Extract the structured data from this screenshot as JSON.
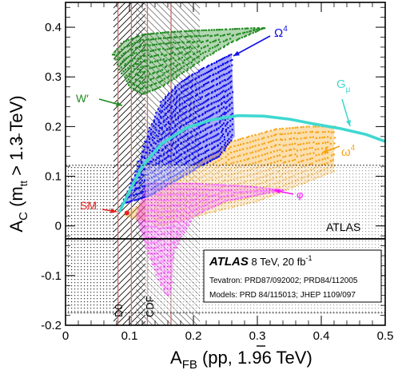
{
  "chart_data": {
    "type": "scatter",
    "xlim": [
      0,
      0.5
    ],
    "ylim": [
      -0.2,
      0.45
    ],
    "xticks": [
      "0",
      "0.1",
      "0.2",
      "0.3",
      "0.4",
      "0.5"
    ],
    "yticks": [
      "-0.2",
      "-0.1",
      "0",
      "0.1",
      "0.2",
      "0.3",
      "0.4"
    ],
    "x_minor_step": 0.02,
    "y_minor_step": 0.02,
    "xlabel": {
      "main": "A",
      "sub": "FB",
      "rest": " (p",
      "pbar": "p",
      "tail": ", 1.96 TeV)"
    },
    "ylabel": {
      "main": "A",
      "sub": "C",
      "pre": " (m",
      "sub2": "tt",
      "post": " > 1.3 TeV)"
    },
    "colors": {
      "W": "#228b22",
      "Omega4": "#1010e8",
      "Gmu": "#40d8d0",
      "omega4": "#f5a418",
      "phi": "#ff10ff",
      "SM": "#e82020",
      "band_line": "#c87878"
    },
    "model_labels": {
      "W": "W′",
      "Omega4": "Ω",
      "Omega4_sup": "4",
      "Gmu": "G",
      "Gmu_sub": "μ",
      "omega4": "ω",
      "omega4_sup": "4",
      "phi": "φ",
      "SM": "SM"
    },
    "atlas_label": "ATLAS",
    "atlas_value": -0.026,
    "atlas_band": [
      -0.175,
      0.122
    ],
    "d0_label": "D0",
    "d0_band": [
      0.075,
      0.125
    ],
    "cdf_label": "CDF",
    "cdf_band": [
      0.11,
      0.21
    ],
    "info_box": {
      "title": "ATLAS",
      "subtitle": " 8 TeV, 20 fb",
      "subtitle_sup": "-1",
      "line1": "Tevatron: PRD87/092002; PRD84/112005",
      "line2": "Models: PRD 84/115013; JHEP 1109/097"
    },
    "series": [
      {
        "name": "W′",
        "key": "W",
        "color": "#228b22",
        "upper_edge": [
          [
            0.075,
            0.345
          ],
          [
            0.09,
            0.37
          ],
          [
            0.12,
            0.385
          ],
          [
            0.16,
            0.39
          ],
          [
            0.2,
            0.393
          ],
          [
            0.24,
            0.395
          ],
          [
            0.29,
            0.398
          ],
          [
            0.31,
            0.398
          ]
        ],
        "lower_edge": [
          [
            0.075,
            0.345
          ],
          [
            0.085,
            0.315
          ],
          [
            0.1,
            0.28
          ],
          [
            0.12,
            0.265
          ],
          [
            0.15,
            0.28
          ],
          [
            0.18,
            0.305
          ],
          [
            0.22,
            0.34
          ],
          [
            0.26,
            0.37
          ],
          [
            0.31,
            0.398
          ]
        ]
      },
      {
        "name": "Ω4",
        "key": "Omega4",
        "color": "#1010e8",
        "upper_edge": [
          [
            0.09,
            0.045
          ],
          [
            0.11,
            0.11
          ],
          [
            0.13,
            0.19
          ],
          [
            0.15,
            0.25
          ],
          [
            0.18,
            0.29
          ],
          [
            0.22,
            0.32
          ],
          [
            0.26,
            0.345
          ]
        ],
        "lower_edge": [
          [
            0.09,
            0.045
          ],
          [
            0.13,
            0.06
          ],
          [
            0.17,
            0.09
          ],
          [
            0.21,
            0.12
          ],
          [
            0.24,
            0.14
          ],
          [
            0.265,
            0.18
          ],
          [
            0.26,
            0.345
          ]
        ]
      },
      {
        "name": "Gμ",
        "key": "Gmu",
        "color": "#40d8d0",
        "x": [
          0.085,
          0.1,
          0.12,
          0.15,
          0.19,
          0.23,
          0.27,
          0.31,
          0.35,
          0.39,
          0.43,
          0.47,
          0.5
        ],
        "y": [
          0.03,
          0.07,
          0.12,
          0.165,
          0.198,
          0.214,
          0.222,
          0.221,
          0.215,
          0.205,
          0.196,
          0.184,
          0.17
        ]
      },
      {
        "name": "ω4",
        "key": "omega4",
        "color": "#f5a418",
        "upper_edge": [
          [
            0.14,
            0.07
          ],
          [
            0.2,
            0.12
          ],
          [
            0.26,
            0.17
          ],
          [
            0.33,
            0.195
          ],
          [
            0.38,
            0.2
          ],
          [
            0.42,
            0.2
          ]
        ],
        "lower_edge": [
          [
            0.09,
            0.02
          ],
          [
            0.15,
            0.0
          ],
          [
            0.22,
            0.025
          ],
          [
            0.3,
            0.05
          ],
          [
            0.36,
            0.08
          ],
          [
            0.42,
            0.11
          ]
        ]
      },
      {
        "name": "φ",
        "key": "phi",
        "color": "#ff10ff",
        "upper_edge": [
          [
            0.125,
            0.085
          ],
          [
            0.2,
            0.085
          ],
          [
            0.28,
            0.08
          ],
          [
            0.34,
            0.072
          ]
        ],
        "lower_edge": [
          [
            0.11,
            0.02
          ],
          [
            0.125,
            -0.04
          ],
          [
            0.14,
            -0.09
          ],
          [
            0.155,
            -0.135
          ],
          [
            0.165,
            -0.14
          ],
          [
            0.17,
            -0.05
          ],
          [
            0.2,
            0.02
          ],
          [
            0.25,
            0.05
          ],
          [
            0.34,
            0.072
          ]
        ]
      }
    ],
    "sm_point": [
      0.096,
      0.026
    ]
  }
}
